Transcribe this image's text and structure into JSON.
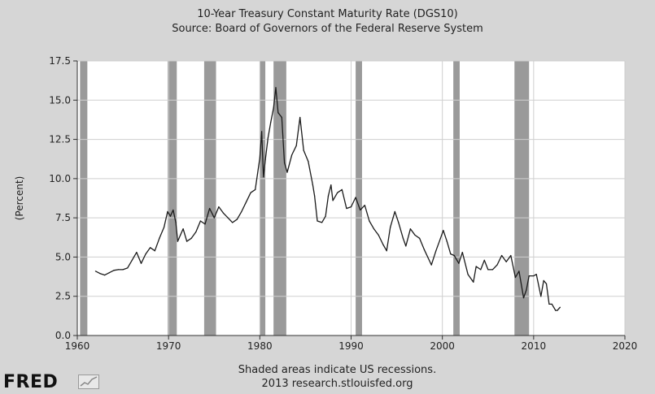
{
  "chart_data": {
    "type": "line",
    "title": "10-Year Treasury Constant Maturity Rate (DGS10)",
    "subtitle": "Source: Board of Governors of the Federal Reserve System",
    "xlabel": "",
    "ylabel": "(Percent)",
    "xlim": [
      1960,
      2020
    ],
    "ylim": [
      0,
      17.5
    ],
    "xticks": [
      1960,
      1970,
      1980,
      1990,
      2000,
      2010,
      2020
    ],
    "yticks": [
      "0.0",
      "2.5",
      "5.0",
      "7.5",
      "10.0",
      "12.5",
      "15.0",
      "17.5"
    ],
    "grid": true,
    "line_color": "#1a1a1a",
    "recession_color": "#9a9a9a",
    "recessions": [
      [
        1960.3,
        1961.1
      ],
      [
        1969.9,
        1970.9
      ],
      [
        1973.9,
        1975.2
      ],
      [
        1980.0,
        1980.6
      ],
      [
        1981.5,
        1982.9
      ],
      [
        1990.5,
        1991.2
      ],
      [
        2001.2,
        2001.9
      ],
      [
        2007.9,
        2009.5
      ]
    ],
    "series": [
      {
        "values": [
          [
            1962.0,
            4.1
          ],
          [
            1962.5,
            3.95
          ],
          [
            1963.0,
            3.85
          ],
          [
            1963.5,
            4.0
          ],
          [
            1964.0,
            4.15
          ],
          [
            1964.5,
            4.2
          ],
          [
            1965.0,
            4.2
          ],
          [
            1965.5,
            4.3
          ],
          [
            1966.0,
            4.8
          ],
          [
            1966.5,
            5.3
          ],
          [
            1967.0,
            4.6
          ],
          [
            1967.5,
            5.2
          ],
          [
            1968.0,
            5.6
          ],
          [
            1968.5,
            5.4
          ],
          [
            1969.0,
            6.2
          ],
          [
            1969.5,
            6.9
          ],
          [
            1969.9,
            7.9
          ],
          [
            1970.2,
            7.6
          ],
          [
            1970.5,
            8.0
          ],
          [
            1970.8,
            7.2
          ],
          [
            1971.0,
            6.0
          ],
          [
            1971.3,
            6.4
          ],
          [
            1971.6,
            6.8
          ],
          [
            1972.0,
            6.0
          ],
          [
            1972.5,
            6.2
          ],
          [
            1973.0,
            6.6
          ],
          [
            1973.5,
            7.3
          ],
          [
            1974.0,
            7.1
          ],
          [
            1974.5,
            8.1
          ],
          [
            1975.0,
            7.5
          ],
          [
            1975.5,
            8.2
          ],
          [
            1976.0,
            7.8
          ],
          [
            1976.5,
            7.5
          ],
          [
            1977.0,
            7.2
          ],
          [
            1977.5,
            7.4
          ],
          [
            1978.0,
            7.9
          ],
          [
            1978.5,
            8.5
          ],
          [
            1979.0,
            9.1
          ],
          [
            1979.5,
            9.3
          ],
          [
            1980.0,
            11.3
          ],
          [
            1980.2,
            13.0
          ],
          [
            1980.4,
            10.1
          ],
          [
            1980.6,
            11.2
          ],
          [
            1980.9,
            12.6
          ],
          [
            1981.2,
            13.6
          ],
          [
            1981.5,
            14.5
          ],
          [
            1981.75,
            15.8
          ],
          [
            1982.0,
            14.2
          ],
          [
            1982.4,
            13.9
          ],
          [
            1982.7,
            11.0
          ],
          [
            1983.0,
            10.4
          ],
          [
            1983.5,
            11.5
          ],
          [
            1984.0,
            12.1
          ],
          [
            1984.4,
            13.9
          ],
          [
            1984.8,
            11.8
          ],
          [
            1985.3,
            11.1
          ],
          [
            1985.8,
            9.6
          ],
          [
            1986.0,
            8.9
          ],
          [
            1986.3,
            7.3
          ],
          [
            1986.8,
            7.2
          ],
          [
            1987.2,
            7.6
          ],
          [
            1987.5,
            8.9
          ],
          [
            1987.8,
            9.6
          ],
          [
            1988.0,
            8.6
          ],
          [
            1988.5,
            9.1
          ],
          [
            1989.0,
            9.3
          ],
          [
            1989.5,
            8.1
          ],
          [
            1990.0,
            8.2
          ],
          [
            1990.5,
            8.8
          ],
          [
            1991.0,
            8.0
          ],
          [
            1991.5,
            8.3
          ],
          [
            1992.0,
            7.3
          ],
          [
            1992.5,
            6.8
          ],
          [
            1993.0,
            6.4
          ],
          [
            1993.5,
            5.8
          ],
          [
            1993.9,
            5.4
          ],
          [
            1994.3,
            6.9
          ],
          [
            1994.8,
            7.9
          ],
          [
            1995.2,
            7.2
          ],
          [
            1995.7,
            6.2
          ],
          [
            1996.0,
            5.7
          ],
          [
            1996.5,
            6.8
          ],
          [
            1997.0,
            6.4
          ],
          [
            1997.5,
            6.2
          ],
          [
            1998.0,
            5.5
          ],
          [
            1998.8,
            4.5
          ],
          [
            1999.3,
            5.4
          ],
          [
            1999.8,
            6.2
          ],
          [
            2000.1,
            6.7
          ],
          [
            2000.5,
            6.0
          ],
          [
            2000.9,
            5.2
          ],
          [
            2001.3,
            5.1
          ],
          [
            2001.8,
            4.6
          ],
          [
            2002.2,
            5.3
          ],
          [
            2002.8,
            3.9
          ],
          [
            2003.4,
            3.4
          ],
          [
            2003.7,
            4.4
          ],
          [
            2004.2,
            4.2
          ],
          [
            2004.6,
            4.8
          ],
          [
            2005.0,
            4.2
          ],
          [
            2005.5,
            4.2
          ],
          [
            2006.0,
            4.5
          ],
          [
            2006.5,
            5.1
          ],
          [
            2007.0,
            4.7
          ],
          [
            2007.5,
            5.1
          ],
          [
            2008.0,
            3.7
          ],
          [
            2008.4,
            4.1
          ],
          [
            2008.9,
            2.4
          ],
          [
            2009.2,
            2.9
          ],
          [
            2009.5,
            3.8
          ],
          [
            2010.0,
            3.8
          ],
          [
            2010.3,
            3.9
          ],
          [
            2010.8,
            2.5
          ],
          [
            2011.1,
            3.5
          ],
          [
            2011.4,
            3.3
          ],
          [
            2011.7,
            2.0
          ],
          [
            2012.0,
            2.0
          ],
          [
            2012.4,
            1.6
          ],
          [
            2012.6,
            1.6
          ],
          [
            2012.9,
            1.8
          ]
        ]
      }
    ]
  },
  "footer": {
    "note": "Shaded areas indicate US recessions.",
    "credit": "2013 research.stlouisfed.org"
  },
  "logo": {
    "text": "FRED",
    "icon": "fred-chart-icon"
  }
}
